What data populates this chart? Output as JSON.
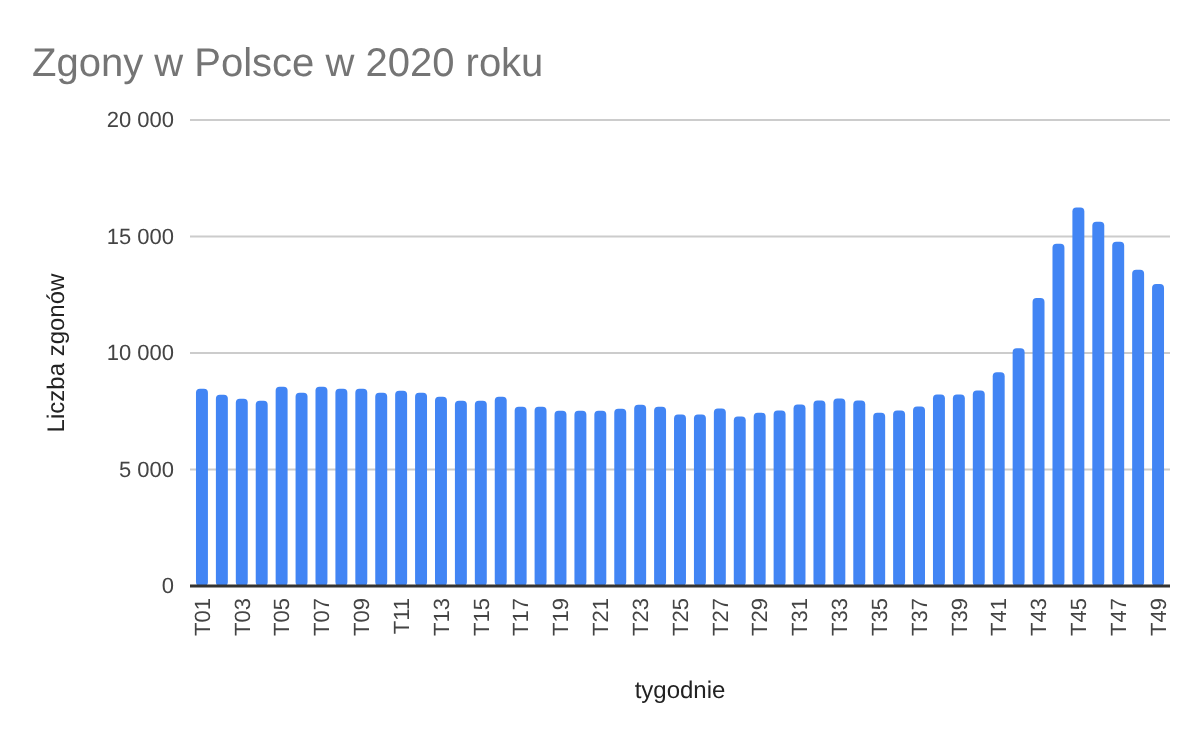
{
  "chart_data": {
    "type": "bar",
    "title": "Zgony w Polsce w 2020 roku",
    "xlabel": "tygodnie",
    "ylabel": "Liczba zgonów",
    "categories": [
      "T01",
      null,
      "T03",
      null,
      "T05",
      null,
      "T07",
      null,
      "T09",
      null,
      "T11",
      null,
      "T13",
      null,
      "T15",
      null,
      "T17",
      null,
      "T19",
      null,
      "T21",
      null,
      "T23",
      null,
      "T25",
      null,
      "T27",
      null,
      "T29",
      null,
      "T31",
      null,
      "T33",
      null,
      "T35",
      null,
      "T37",
      null,
      "T39",
      null,
      "T41",
      null,
      "T43",
      null,
      "T45",
      null,
      "T47",
      null,
      "T49"
    ],
    "values": [
      8470,
      8210,
      8040,
      7950,
      8550,
      8290,
      8550,
      8470,
      8470,
      8290,
      8380,
      8290,
      8120,
      7950,
      7950,
      8120,
      7690,
      7690,
      7520,
      7520,
      7520,
      7610,
      7780,
      7690,
      7360,
      7360,
      7620,
      7270,
      7440,
      7530,
      7790,
      7960,
      8050,
      7960,
      7440,
      7530,
      7700,
      8220,
      8220,
      8390,
      9170,
      10200,
      12360,
      14690,
      16240,
      15630,
      14770,
      13570,
      12960
    ],
    "color": "#4285f4",
    "ylim": [
      0,
      20000
    ],
    "yticks": [
      {
        "value": 0,
        "label": "0"
      },
      {
        "value": 5000,
        "label": "5 000"
      },
      {
        "value": 10000,
        "label": "10 000"
      },
      {
        "value": 15000,
        "label": "15 000"
      },
      {
        "value": 20000,
        "label": "20 000"
      }
    ],
    "grid": "y"
  }
}
